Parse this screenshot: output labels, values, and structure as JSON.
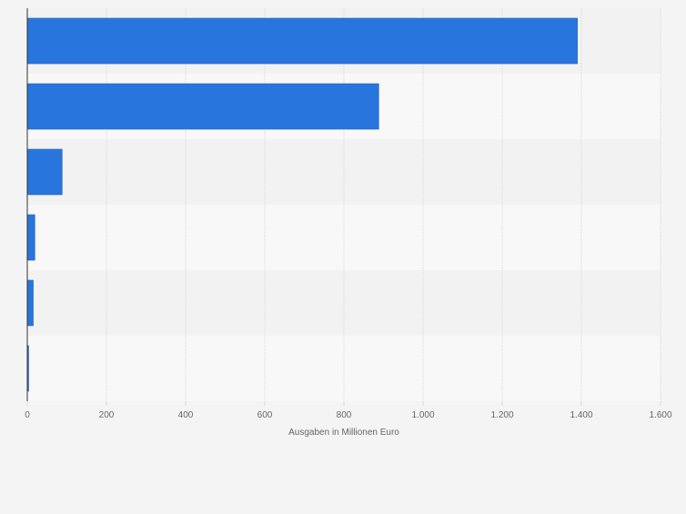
{
  "chart_data": {
    "type": "bar",
    "orientation": "horizontal",
    "categories": [
      "",
      "",
      "",
      "",
      "",
      ""
    ],
    "values": [
      1390,
      888,
      88,
      19,
      15,
      3
    ],
    "title": "",
    "xlabel": "Ausgaben in Millionen Euro",
    "ylabel": "",
    "xlim": [
      0,
      1600
    ],
    "x_ticks": [
      0,
      200,
      400,
      600,
      800,
      1000,
      1200,
      1400,
      1600
    ],
    "x_tick_labels": [
      "0",
      "200",
      "400",
      "600",
      "800",
      "1.000",
      "1.200",
      "1.400",
      "1.600"
    ],
    "grid": true,
    "legend": "none",
    "colors": {
      "bar": "#2876dd",
      "bar_outline": "#1f5fb8",
      "band_dark": "#f2f2f2",
      "band_light": "#f8f8f8",
      "background": "#f4f4f4",
      "grid": "#d9d9d9",
      "axis": "#333333",
      "text": "#666666"
    }
  }
}
